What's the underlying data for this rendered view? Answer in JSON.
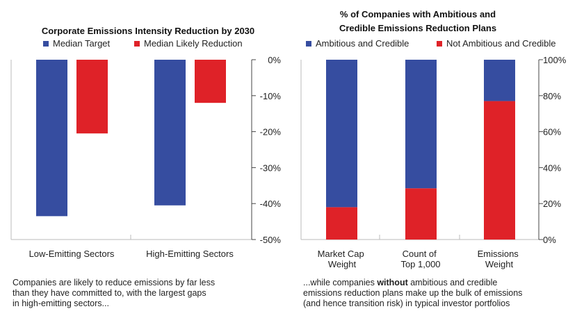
{
  "colors": {
    "primary": "#364da0",
    "secondary": "#df2228"
  },
  "chart_data": [
    {
      "type": "bar",
      "title": "Corporate Emissions Intensity Reduction by 2030",
      "categories": [
        "Low-Emitting Sectors",
        "High-Emitting Sectors"
      ],
      "series": [
        {
          "name": "Median Target",
          "values": [
            -43.5,
            -40.5
          ]
        },
        {
          "name": "Median Likely Reduction",
          "values": [
            -20.5,
            -12
          ]
        }
      ],
      "ylim": [
        -50,
        0
      ],
      "yticks": [
        0,
        -10,
        -20,
        -30,
        -40,
        -50
      ],
      "ytick_labels": [
        "0%",
        "-10%",
        "-20%",
        "-30%",
        "-40%",
        "-50%"
      ],
      "legend": "top",
      "grid": false
    },
    {
      "type": "bar",
      "stacked": true,
      "title": "% of Companies with Ambitious and Credible Emissions Reduction Plans",
      "title_lines": [
        "% of Companies with Ambitious and",
        "Credible Emissions Reduction Plans"
      ],
      "categories": [
        "Market Cap Weight",
        "Count of Top 1,000",
        "Emissions Weight"
      ],
      "category_lines": [
        [
          "Market Cap",
          "Weight"
        ],
        [
          "Count of",
          "Top 1,000"
        ],
        [
          "Emissions",
          "Weight"
        ]
      ],
      "series": [
        {
          "name": "Ambitious and Credible",
          "values": [
            82,
            71.5,
            23
          ]
        },
        {
          "name": "Not Ambitious and Credible",
          "values": [
            18,
            28.5,
            77
          ]
        }
      ],
      "ylim": [
        0,
        100
      ],
      "yticks": [
        0,
        20,
        40,
        60,
        80,
        100
      ],
      "ytick_labels": [
        "0%",
        "20%",
        "40%",
        "60%",
        "80%",
        "100%"
      ],
      "legend": "top",
      "grid": false
    }
  ],
  "captions": {
    "left": [
      "Companies are likely to reduce emissions by far less",
      "than they have committed to, with the largest gaps",
      "in high-emitting sectors..."
    ],
    "right_pre": "...while companies ",
    "right_bold": "without",
    "right_post": " ambitious and credible",
    "right_line2": "emissions reduction plans make up the bulk of emissions",
    "right_line3": "(and hence transition risk) in typical investor portfolios"
  }
}
